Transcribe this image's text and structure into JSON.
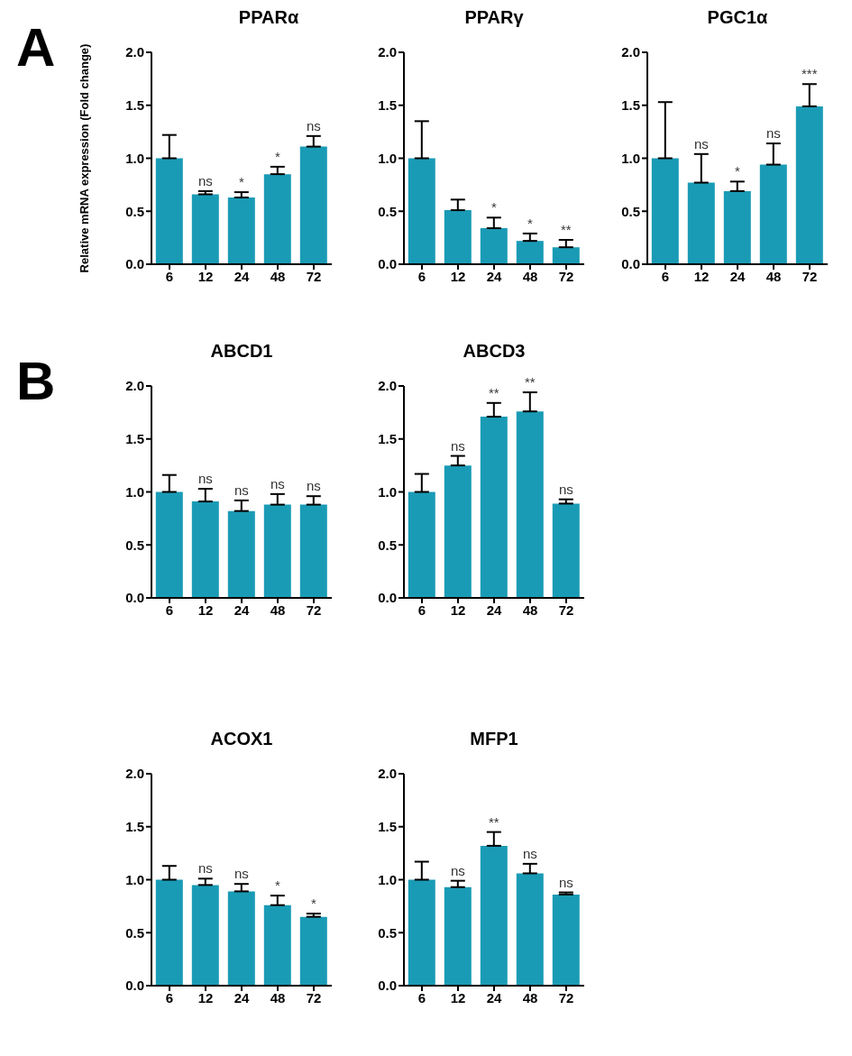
{
  "chart_data": [
    {
      "type": "bar",
      "title": "PPARα",
      "ylabel": "Relative mRNA expression (Fold change)",
      "annotations": [
        "A"
      ],
      "categories": [
        "6",
        "12",
        "24",
        "48",
        "72"
      ],
      "values": [
        1.0,
        0.66,
        0.63,
        0.85,
        1.11
      ],
      "errors": [
        [
          1.0,
          1.22
        ],
        [
          0.66,
          0.69
        ],
        [
          0.63,
          0.68
        ],
        [
          0.85,
          0.92
        ],
        [
          1.11,
          1.21
        ]
      ],
      "value_labels": [
        null,
        "ns",
        "*",
        "*",
        "ns"
      ],
      "color": "#1a9bb5",
      "ylim": [
        0,
        2
      ],
      "yticks": [
        {
          "value": 0,
          "label": "0.0"
        },
        {
          "value": 0.5,
          "label": "0.5"
        },
        {
          "value": 1,
          "label": "1.0"
        },
        {
          "value": 1.5,
          "label": "1.5"
        },
        {
          "value": 2,
          "label": "2.0"
        }
      ],
      "grid": false,
      "legend": false
    },
    {
      "type": "bar",
      "title": "PPARγ",
      "categories": [
        "6",
        "12",
        "24",
        "48",
        "72"
      ],
      "values": [
        1.0,
        0.51,
        0.34,
        0.22,
        0.16
      ],
      "errors": [
        [
          1.0,
          1.35
        ],
        [
          0.51,
          0.61
        ],
        [
          0.34,
          0.44
        ],
        [
          0.22,
          0.29
        ],
        [
          0.16,
          0.23
        ]
      ],
      "value_labels": [
        null,
        null,
        "*",
        "*",
        "**"
      ],
      "color": "#1a9bb5",
      "ylim": [
        0,
        2
      ],
      "yticks": [
        {
          "value": 0,
          "label": "0.0"
        },
        {
          "value": 0.5,
          "label": "0.5"
        },
        {
          "value": 1,
          "label": "1.0"
        },
        {
          "value": 1.5,
          "label": "1.5"
        },
        {
          "value": 2,
          "label": "2.0"
        }
      ],
      "grid": false,
      "legend": false
    },
    {
      "type": "bar",
      "title": "PGC1α",
      "categories": [
        "6",
        "12",
        "24",
        "48",
        "72"
      ],
      "values": [
        1.0,
        0.77,
        0.69,
        0.94,
        1.49
      ],
      "errors": [
        [
          1.0,
          1.53
        ],
        [
          0.77,
          1.04
        ],
        [
          0.69,
          0.78
        ],
        [
          0.94,
          1.14
        ],
        [
          1.49,
          1.7
        ]
      ],
      "value_labels": [
        null,
        "ns",
        "*",
        "ns",
        "***"
      ],
      "color": "#1a9bb5",
      "ylim": [
        0,
        2
      ],
      "yticks": [
        {
          "value": 0,
          "label": "0.0"
        },
        {
          "value": 0.5,
          "label": "0.5"
        },
        {
          "value": 1,
          "label": "1.0"
        },
        {
          "value": 1.5,
          "label": "1.5"
        },
        {
          "value": 2,
          "label": "2.0"
        }
      ],
      "grid": false,
      "legend": false
    },
    {
      "type": "bar",
      "title": "ABCD1",
      "annotations": [
        "B"
      ],
      "categories": [
        "6",
        "12",
        "24",
        "48",
        "72"
      ],
      "values": [
        1.0,
        0.91,
        0.82,
        0.88,
        0.88
      ],
      "errors": [
        [
          1.0,
          1.16
        ],
        [
          0.91,
          1.03
        ],
        [
          0.82,
          0.92
        ],
        [
          0.88,
          0.98
        ],
        [
          0.88,
          0.96
        ]
      ],
      "value_labels": [
        null,
        "ns",
        "ns",
        "ns",
        "ns"
      ],
      "color": "#1a9bb5",
      "ylim": [
        0,
        2
      ],
      "yticks": [
        {
          "value": 0,
          "label": "0.0"
        },
        {
          "value": 0.5,
          "label": "0.5"
        },
        {
          "value": 1,
          "label": "1.0"
        },
        {
          "value": 1.5,
          "label": "1.5"
        },
        {
          "value": 2,
          "label": "2.0"
        }
      ],
      "grid": false,
      "legend": false
    },
    {
      "type": "bar",
      "title": "ABCD3",
      "categories": [
        "6",
        "12",
        "24",
        "48",
        "72"
      ],
      "values": [
        1.0,
        1.25,
        1.71,
        1.76,
        0.89
      ],
      "errors": [
        [
          1.0,
          1.17
        ],
        [
          1.25,
          1.34
        ],
        [
          1.71,
          1.84
        ],
        [
          1.76,
          1.94
        ],
        [
          0.89,
          0.93
        ]
      ],
      "value_labels": [
        null,
        "ns",
        "**",
        "**",
        "ns"
      ],
      "color": "#1a9bb5",
      "ylim": [
        0,
        2
      ],
      "yticks": [
        {
          "value": 0,
          "label": "0.0"
        },
        {
          "value": 0.5,
          "label": "0.5"
        },
        {
          "value": 1,
          "label": "1.0"
        },
        {
          "value": 1.5,
          "label": "1.5"
        },
        {
          "value": 2,
          "label": "2.0"
        }
      ],
      "grid": false,
      "legend": false
    },
    {
      "type": "bar",
      "title": "ACOX1",
      "categories": [
        "6",
        "12",
        "24",
        "48",
        "72"
      ],
      "values": [
        1.0,
        0.95,
        0.89,
        0.76,
        0.65
      ],
      "errors": [
        [
          1.0,
          1.13
        ],
        [
          0.95,
          1.01
        ],
        [
          0.89,
          0.96
        ],
        [
          0.76,
          0.85
        ],
        [
          0.65,
          0.68
        ]
      ],
      "value_labels": [
        null,
        "ns",
        "ns",
        "*",
        "*"
      ],
      "color": "#1a9bb5",
      "ylim": [
        0,
        2
      ],
      "yticks": [
        {
          "value": 0,
          "label": "0.0"
        },
        {
          "value": 0.5,
          "label": "0.5"
        },
        {
          "value": 1,
          "label": "1.0"
        },
        {
          "value": 1.5,
          "label": "1.5"
        },
        {
          "value": 2,
          "label": "2.0"
        }
      ],
      "grid": false,
      "legend": false
    },
    {
      "type": "bar",
      "title": "MFP1",
      "categories": [
        "6",
        "12",
        "24",
        "48",
        "72"
      ],
      "values": [
        1.0,
        0.93,
        1.32,
        1.06,
        0.86
      ],
      "errors": [
        [
          1.0,
          1.17
        ],
        [
          0.93,
          0.99
        ],
        [
          1.32,
          1.45
        ],
        [
          1.06,
          1.15
        ],
        [
          0.86,
          0.88
        ]
      ],
      "value_labels": [
        null,
        "ns",
        "**",
        "ns",
        "ns"
      ],
      "color": "#1a9bb5",
      "ylim": [
        0,
        2
      ],
      "yticks": [
        {
          "value": 0,
          "label": "0.0"
        },
        {
          "value": 0.5,
          "label": "0.5"
        },
        {
          "value": 1,
          "label": "1.0"
        },
        {
          "value": 1.5,
          "label": "1.5"
        },
        {
          "value": 2,
          "label": "2.0"
        }
      ],
      "grid": false,
      "legend": false
    }
  ]
}
